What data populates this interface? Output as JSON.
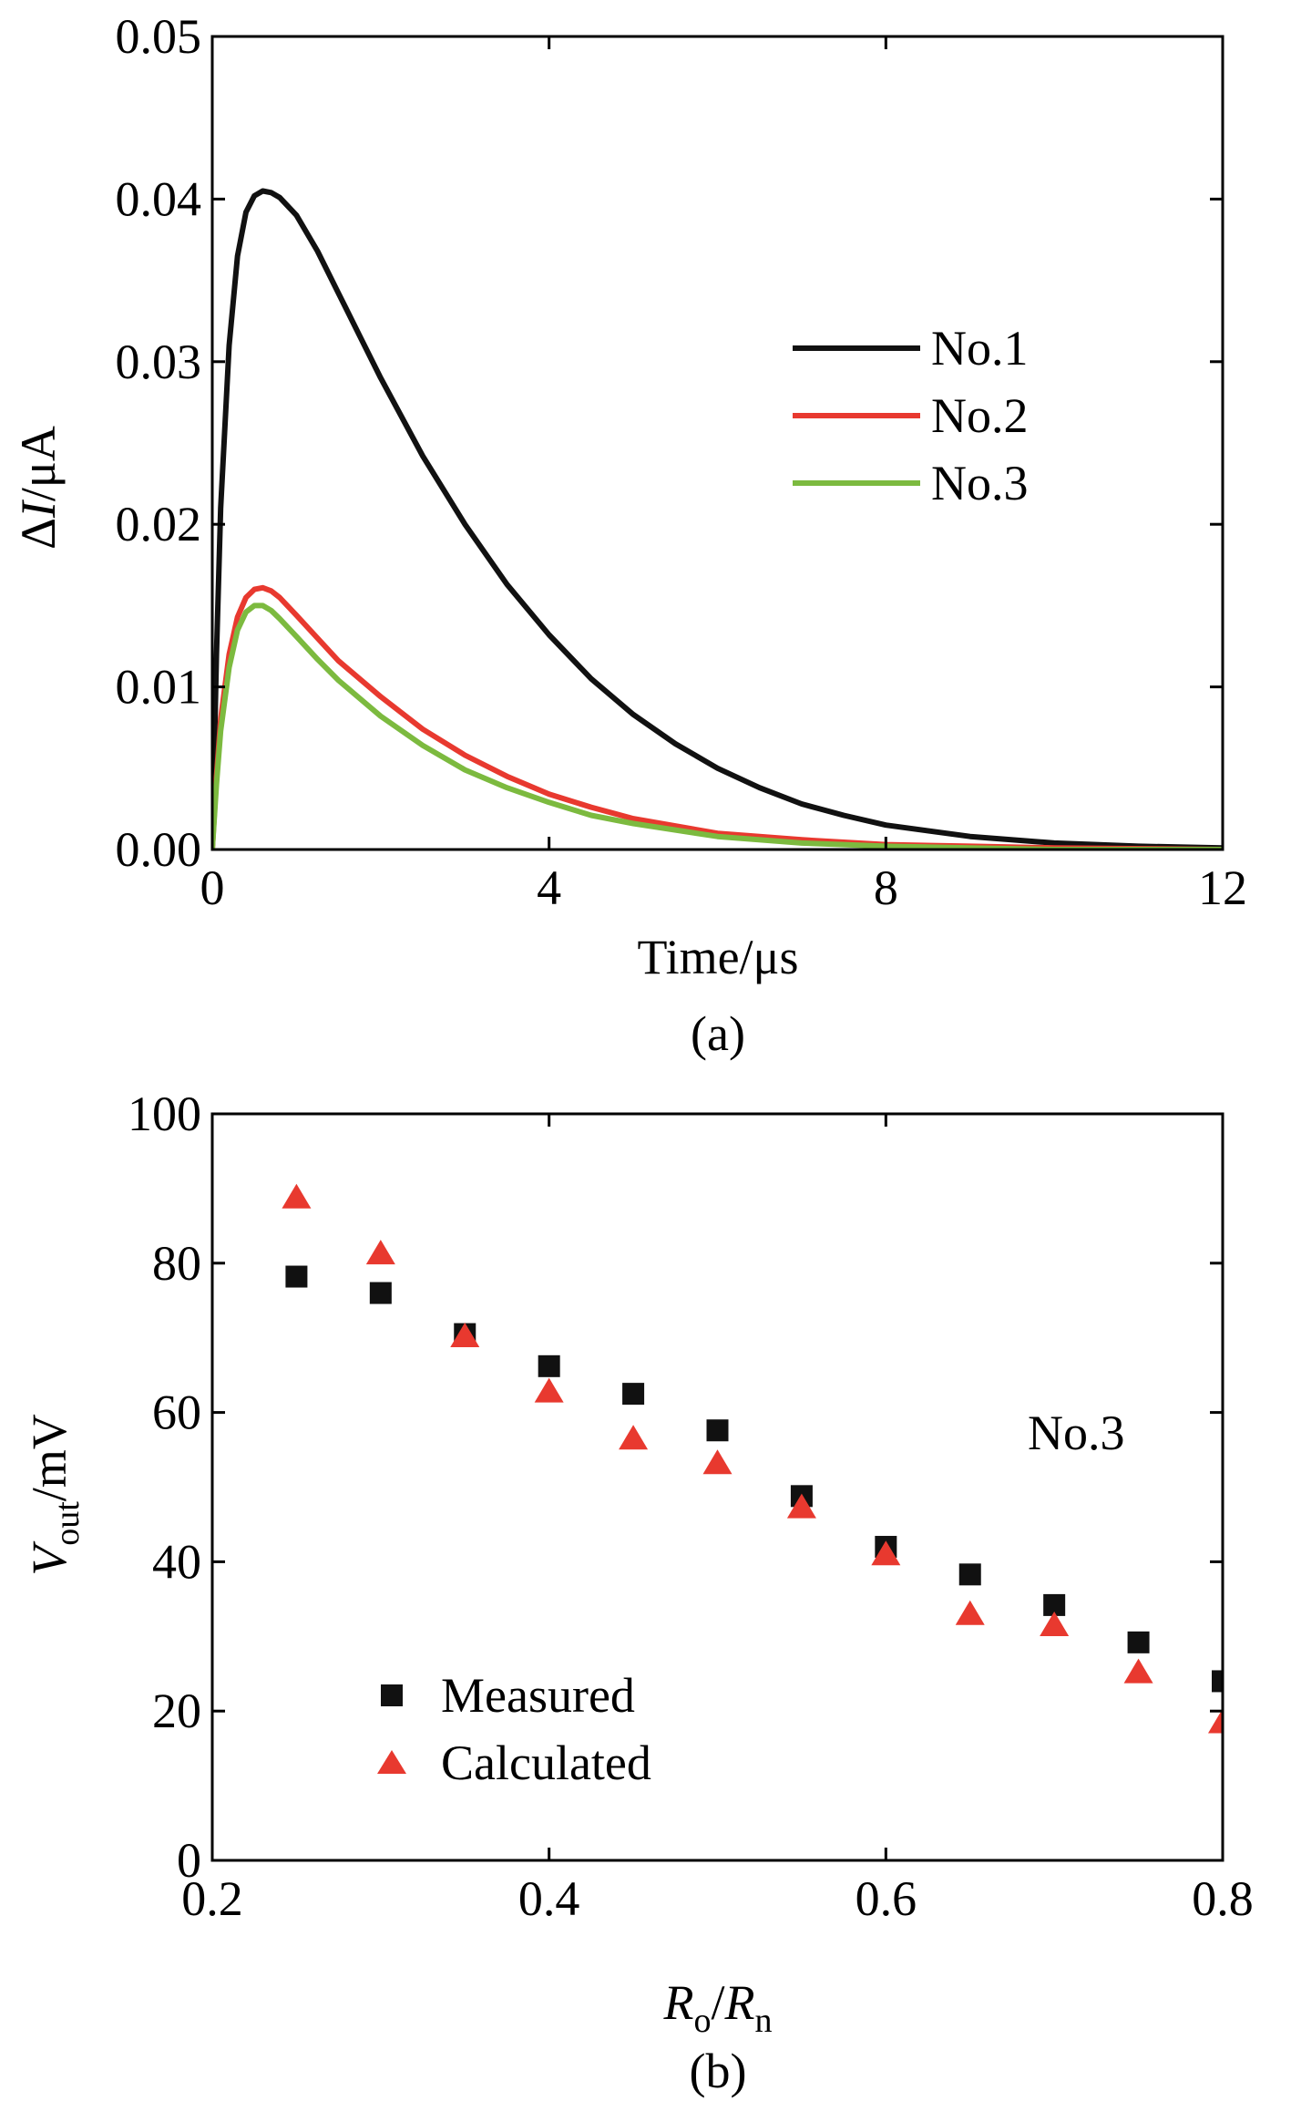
{
  "figure_captions": {
    "a": "(a)",
    "b": "(b)"
  },
  "chart_data": [
    {
      "type": "line",
      "panel": "(a)",
      "title": "",
      "xlabel": "Time/μs",
      "ylabel_delta": "Δ",
      "ylabel_var": "I",
      "ylabel_unit": "/μA",
      "xlim": [
        0,
        12
      ],
      "ylim": [
        0,
        0.05
      ],
      "xticks": [
        0,
        4,
        8,
        12
      ],
      "xtick_labels": [
        "0",
        "4",
        "8",
        "12"
      ],
      "yticks": [
        0,
        0.01,
        0.02,
        0.03,
        0.04,
        0.05
      ],
      "ytick_labels": [
        "0.00",
        "0.01",
        "0.02",
        "0.03",
        "0.04",
        "0.05"
      ],
      "grid": false,
      "legend_position": "top-right",
      "series": [
        {
          "name": "No.1",
          "color": "#111111",
          "points": [
            [
              0,
              0
            ],
            [
              0.05,
              0.012
            ],
            [
              0.1,
              0.021
            ],
            [
              0.2,
              0.031
            ],
            [
              0.3,
              0.0365
            ],
            [
              0.4,
              0.0392
            ],
            [
              0.5,
              0.0402
            ],
            [
              0.6,
              0.0405
            ],
            [
              0.7,
              0.0404
            ],
            [
              0.8,
              0.0401
            ],
            [
              1.0,
              0.039
            ],
            [
              1.25,
              0.0368
            ],
            [
              1.5,
              0.0342
            ],
            [
              1.75,
              0.0316
            ],
            [
              2.0,
              0.029
            ],
            [
              2.5,
              0.0242
            ],
            [
              3.0,
              0.02
            ],
            [
              3.5,
              0.0163
            ],
            [
              4.0,
              0.0132
            ],
            [
              4.5,
              0.0105
            ],
            [
              5.0,
              0.0083
            ],
            [
              5.5,
              0.0065
            ],
            [
              6.0,
              0.005
            ],
            [
              6.5,
              0.0038
            ],
            [
              7.0,
              0.0028
            ],
            [
              7.5,
              0.0021
            ],
            [
              8.0,
              0.0015
            ],
            [
              9.0,
              0.0008
            ],
            [
              10.0,
              0.0004
            ],
            [
              11.0,
              0.0002
            ],
            [
              12.0,
              0.0001
            ]
          ]
        },
        {
          "name": "No.2",
          "color": "#e8392f",
          "points": [
            [
              0,
              0
            ],
            [
              0.05,
              0.0045
            ],
            [
              0.1,
              0.008
            ],
            [
              0.2,
              0.012
            ],
            [
              0.3,
              0.0143
            ],
            [
              0.4,
              0.0155
            ],
            [
              0.5,
              0.016
            ],
            [
              0.6,
              0.0161
            ],
            [
              0.7,
              0.0159
            ],
            [
              0.8,
              0.0155
            ],
            [
              1.0,
              0.0144
            ],
            [
              1.25,
              0.013
            ],
            [
              1.5,
              0.0116
            ],
            [
              2.0,
              0.0094
            ],
            [
              2.5,
              0.0074
            ],
            [
              3.0,
              0.0058
            ],
            [
              3.5,
              0.0045
            ],
            [
              4.0,
              0.0034
            ],
            [
              4.5,
              0.0026
            ],
            [
              5.0,
              0.0019
            ],
            [
              6.0,
              0.001
            ],
            [
              7.0,
              0.0006
            ],
            [
              8.0,
              0.0003
            ],
            [
              9.0,
              0.0002
            ],
            [
              10.0,
              0.0001
            ],
            [
              12.0,
              0.0
            ]
          ]
        },
        {
          "name": "No.3",
          "color": "#7cba3f",
          "points": [
            [
              0,
              0
            ],
            [
              0.05,
              0.004
            ],
            [
              0.1,
              0.0073
            ],
            [
              0.2,
              0.0112
            ],
            [
              0.3,
              0.0135
            ],
            [
              0.4,
              0.0146
            ],
            [
              0.5,
              0.015
            ],
            [
              0.6,
              0.015
            ],
            [
              0.7,
              0.0147
            ],
            [
              0.8,
              0.0142
            ],
            [
              1.0,
              0.0131
            ],
            [
              1.25,
              0.0117
            ],
            [
              1.5,
              0.0104
            ],
            [
              2.0,
              0.0082
            ],
            [
              2.5,
              0.0064
            ],
            [
              3.0,
              0.0049
            ],
            [
              3.5,
              0.0038
            ],
            [
              4.0,
              0.0029
            ],
            [
              4.5,
              0.0021
            ],
            [
              5.0,
              0.0016
            ],
            [
              6.0,
              0.0008
            ],
            [
              7.0,
              0.0004
            ],
            [
              8.0,
              0.0002
            ],
            [
              9.0,
              0.0001
            ],
            [
              10.0,
              0.0
            ],
            [
              12.0,
              0.0
            ]
          ]
        }
      ]
    },
    {
      "type": "scatter",
      "panel": "(b)",
      "title": "",
      "xlabel_var1": "R",
      "xlabel_sub1": "o",
      "xlabel_sep": "/",
      "xlabel_var2": "R",
      "xlabel_sub2": "n",
      "ylabel_var": "V",
      "ylabel_sub": "out",
      "ylabel_unit": "/mV",
      "xlim": [
        0.2,
        0.8
      ],
      "ylim": [
        0,
        100
      ],
      "xticks": [
        0.2,
        0.4,
        0.6,
        0.8
      ],
      "xtick_labels": [
        "0.2",
        "0.4",
        "0.6",
        "0.8"
      ],
      "yticks": [
        0,
        20,
        40,
        60,
        80,
        100
      ],
      "ytick_labels": [
        "0",
        "20",
        "40",
        "60",
        "80",
        "100"
      ],
      "grid": false,
      "legend_position": "bottom-left",
      "annotation": "No.3",
      "series": [
        {
          "name": "Measured",
          "marker": "square",
          "color": "#111111",
          "x": [
            0.25,
            0.3,
            0.35,
            0.4,
            0.45,
            0.5,
            0.55,
            0.6,
            0.65,
            0.7,
            0.75,
            0.8
          ],
          "y": [
            78.2,
            76.0,
            70.5,
            66.2,
            62.5,
            57.6,
            48.8,
            42.0,
            38.3,
            34.2,
            29.2,
            24.0
          ]
        },
        {
          "name": "Calculated",
          "marker": "triangle",
          "color": "#e8392f",
          "x": [
            0.25,
            0.3,
            0.35,
            0.4,
            0.45,
            0.5,
            0.55,
            0.6,
            0.65,
            0.7,
            0.75,
            0.8
          ],
          "y": [
            88.8,
            81.3,
            70.2,
            62.8,
            56.5,
            53.2,
            47.3,
            41.0,
            33.0,
            31.5,
            25.2,
            18.5
          ]
        }
      ]
    }
  ]
}
